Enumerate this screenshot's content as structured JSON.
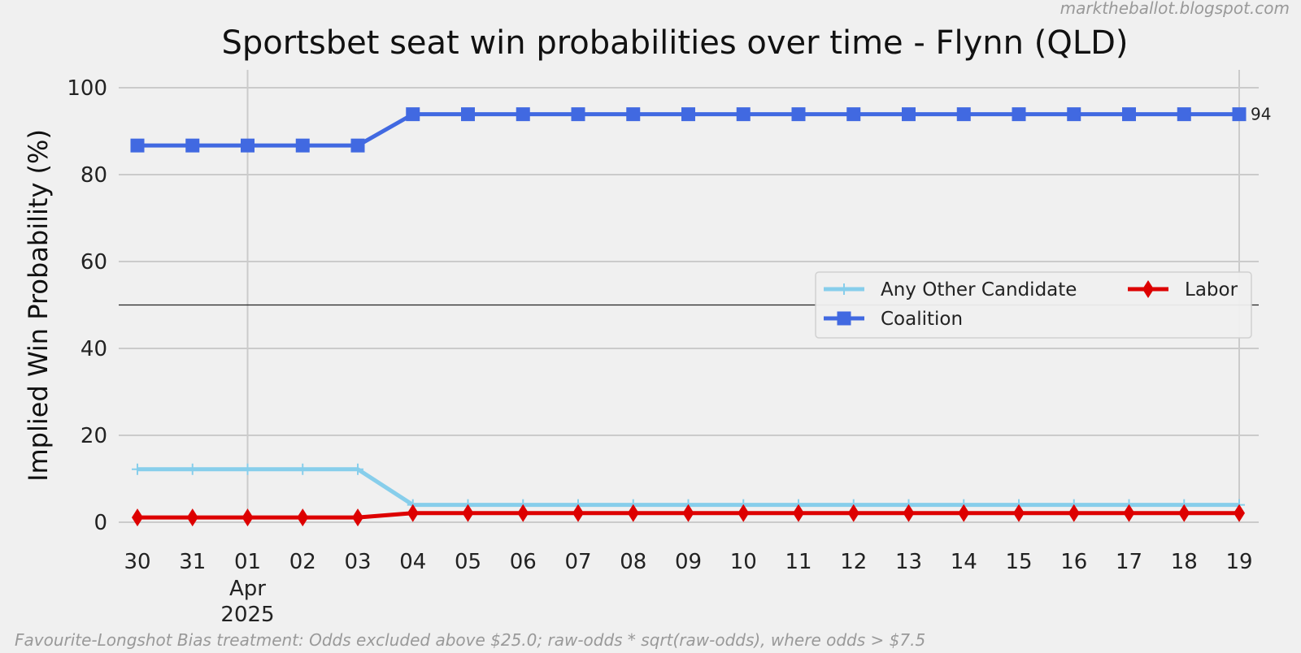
{
  "watermark": "marktheballot.blogspot.com",
  "footer": "Favourite-Longshot Bias treatment: Odds excluded above $25.0; raw-odds * sqrt(raw-odds), where odds > $7.5",
  "chart_data": {
    "type": "line",
    "title": "Sportsbet seat win probabilities over time - Flynn (QLD)",
    "xlabel": "",
    "ylabel": "Implied Win Probability (%)",
    "ylim": [
      0,
      100
    ],
    "yticks": [
      0,
      20,
      40,
      60,
      80,
      100
    ],
    "reference_line_y": 50,
    "grid": true,
    "legend_position": "center-right",
    "x": [
      "30",
      "31",
      "01",
      "02",
      "03",
      "04",
      "05",
      "06",
      "07",
      "08",
      "09",
      "10",
      "11",
      "12",
      "13",
      "14",
      "15",
      "16",
      "17",
      "18",
      "19"
    ],
    "x_sublabel": {
      "index": 2,
      "month": "Apr",
      "year": "2025"
    },
    "series": [
      {
        "name": "Any Other Candidate",
        "color": "#87ceeb",
        "marker": "plus",
        "values": [
          12.2,
          12.2,
          12.2,
          12.2,
          12.2,
          4.0,
          4.0,
          4.0,
          4.0,
          4.0,
          4.0,
          4.0,
          4.0,
          4.0,
          4.0,
          4.0,
          4.0,
          4.0,
          4.0,
          4.0,
          4.0
        ]
      },
      {
        "name": "Coalition",
        "color": "#4169e1",
        "marker": "square",
        "values": [
          86.7,
          86.7,
          86.7,
          86.7,
          86.7,
          93.9,
          93.9,
          93.9,
          93.9,
          93.9,
          93.9,
          93.9,
          93.9,
          93.9,
          93.9,
          93.9,
          93.9,
          93.9,
          93.9,
          93.9,
          93.9
        ]
      },
      {
        "name": "Labor",
        "color": "#dd0000",
        "marker": "diamond",
        "values": [
          1.1,
          1.1,
          1.1,
          1.1,
          1.1,
          2.1,
          2.1,
          2.1,
          2.1,
          2.1,
          2.1,
          2.1,
          2.1,
          2.1,
          2.1,
          2.1,
          2.1,
          2.1,
          2.1,
          2.1,
          2.1
        ]
      }
    ],
    "end_label": {
      "series": "Coalition",
      "text": "94"
    }
  }
}
